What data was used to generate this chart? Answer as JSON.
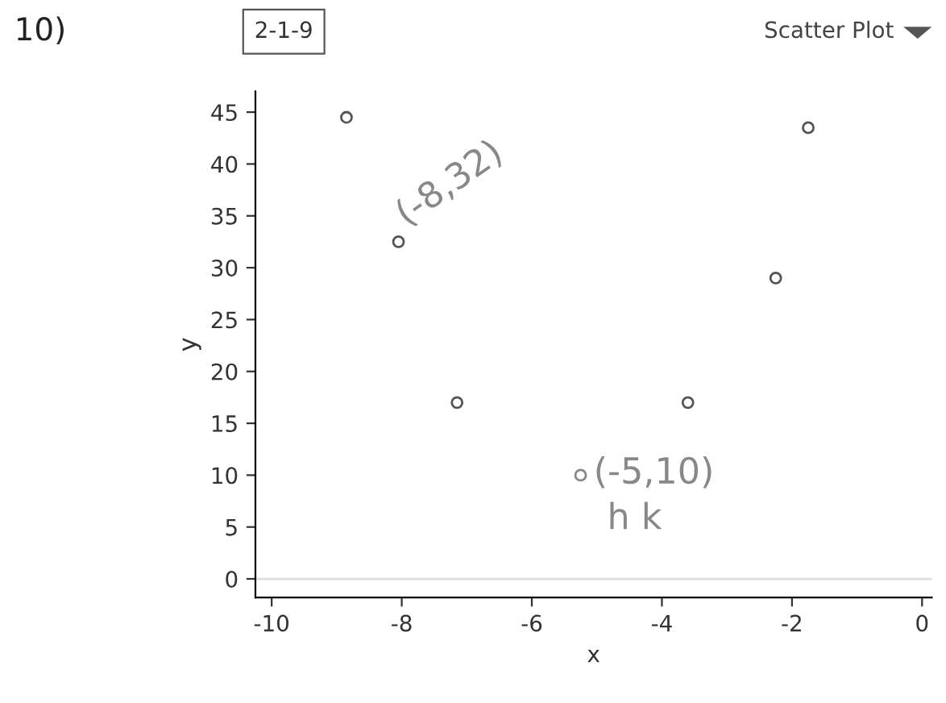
{
  "chart_data": {
    "type": "scatter",
    "title": "2-1-9",
    "subtitle": "Scatter Plot",
    "xlabel": "x",
    "ylabel": "y",
    "x": [
      -8.85,
      -8.05,
      -7.15,
      -5.25,
      -3.6,
      -2.25,
      -1.75
    ],
    "values": [
      44.5,
      32.5,
      17,
      10,
      17,
      29,
      43.5
    ],
    "colors": [
      "#555555",
      "#555555",
      "#555555",
      "#888888",
      "#555555",
      "#555555",
      "#555555"
    ],
    "marker": "circle",
    "xlim": [
      -10.25,
      0.15
    ],
    "ylim": [
      -1.8,
      47
    ],
    "xticks": [
      -10,
      -8,
      -6,
      -4,
      -2,
      0
    ],
    "yticks": [
      0,
      5,
      10,
      15,
      20,
      25,
      30,
      35,
      40,
      45
    ],
    "grid": false,
    "ref_lines": [
      {
        "axis": "y",
        "value": 0,
        "color": "#dddddd"
      }
    ],
    "annotations": [
      "10)",
      "(-8,32)",
      "(-5,10)",
      "h k"
    ]
  }
}
